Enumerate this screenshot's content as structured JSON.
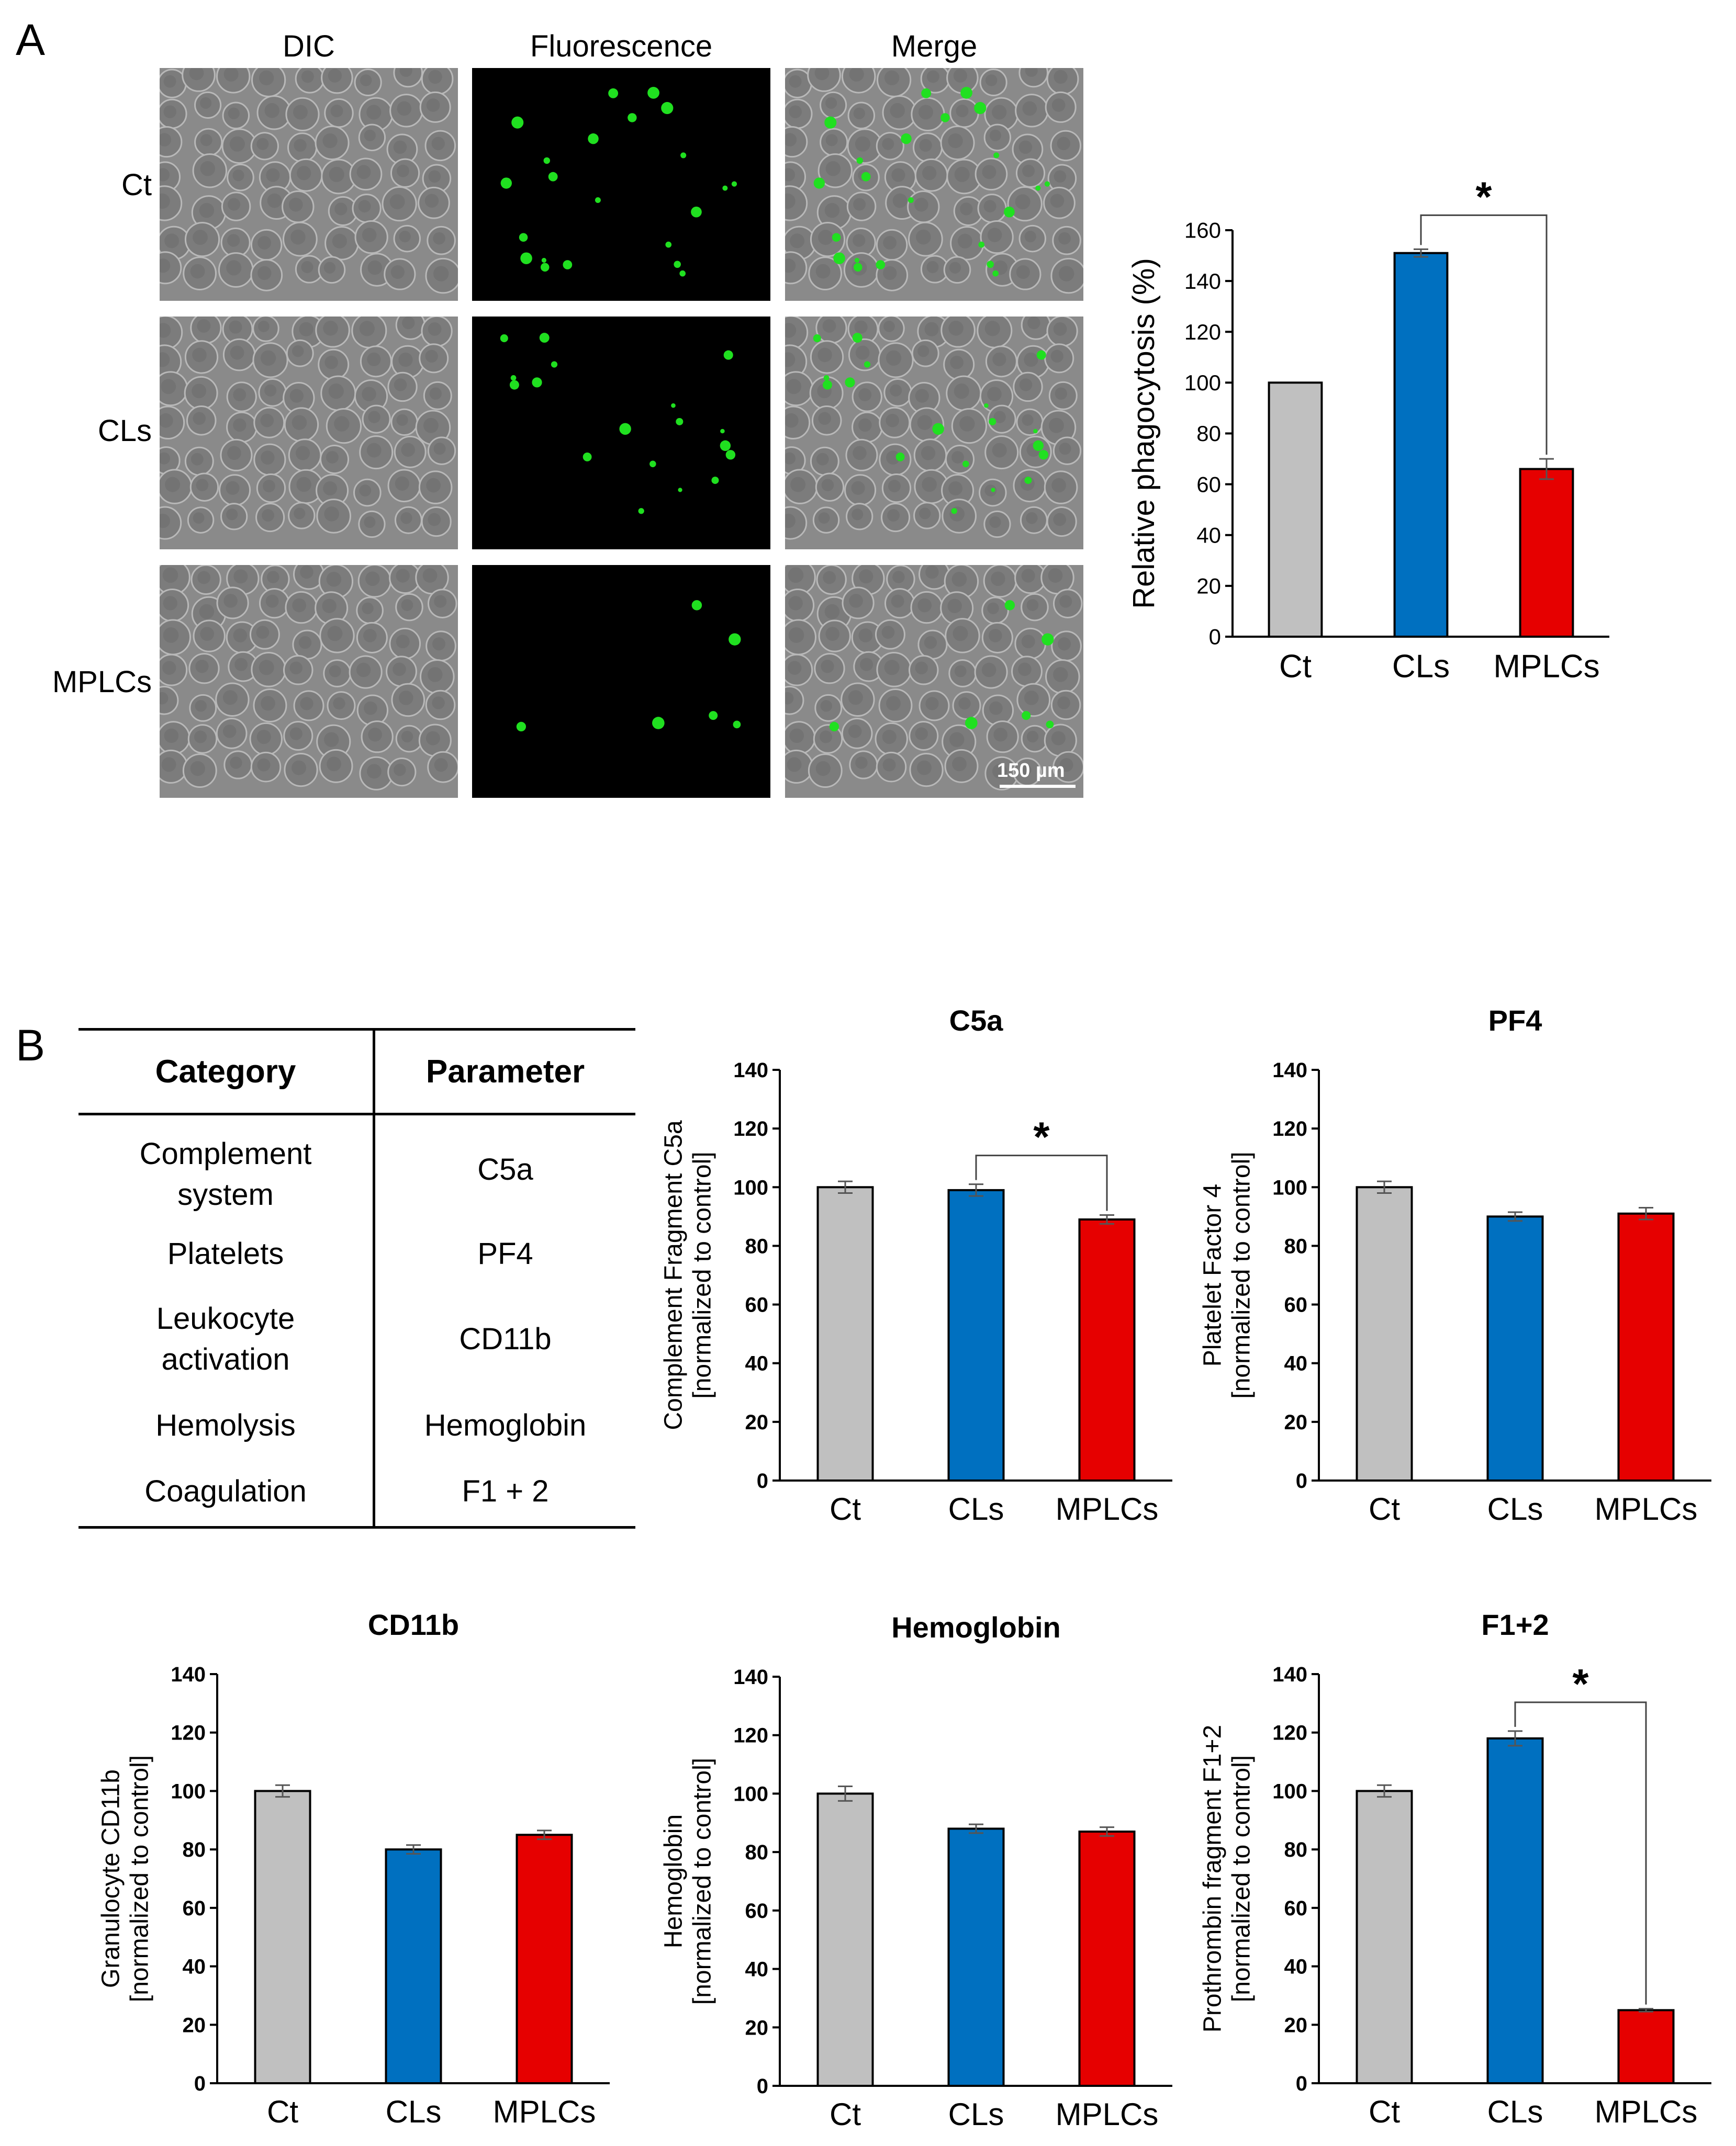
{
  "panel_a": {
    "letter": "A",
    "columns": [
      "DIC",
      "Fluorescence",
      "Merge"
    ],
    "rows": [
      "Ct",
      "CLs",
      "MPLCs"
    ],
    "scale_bar": "150 µm"
  },
  "panel_b": {
    "letter": "B",
    "table": {
      "headers": [
        "Category",
        "Parameter"
      ],
      "rows": [
        {
          "category": [
            "Complement",
            "system"
          ],
          "parameter": "C5a"
        },
        {
          "category": [
            "Platelets"
          ],
          "parameter": "PF4"
        },
        {
          "category": [
            "Leukocyte",
            "activation"
          ],
          "parameter": "CD11b"
        },
        {
          "category": [
            "Hemolysis"
          ],
          "parameter": "Hemoglobin"
        },
        {
          "category": [
            "Coagulation"
          ],
          "parameter": "F1 + 2"
        }
      ]
    }
  },
  "colors": {
    "Ct": "#c0c0c0",
    "CLs": "#0070c0",
    "MPLCs": "#e60000"
  },
  "chart_data": [
    {
      "type": "bar",
      "title": "",
      "categories": [
        "Ct",
        "CLs",
        "MPLCs"
      ],
      "values": [
        100,
        151,
        66
      ],
      "errors": [
        0,
        1.5,
        4
      ],
      "ylabel": [
        "Relative phagocytosis (%)"
      ],
      "ylim": [
        0,
        160
      ],
      "yticks": [
        0,
        20,
        40,
        60,
        80,
        100,
        120,
        140,
        160
      ],
      "significance": {
        "from": 1,
        "to": 2,
        "label": "*"
      }
    },
    {
      "type": "bar",
      "title": "C5a",
      "categories": [
        "Ct",
        "CLs",
        "MPLCs"
      ],
      "values": [
        100,
        99,
        89
      ],
      "errors": [
        2,
        2,
        1.5
      ],
      "ylabel": [
        "Complement Fragment C5a",
        "[normalized to control]"
      ],
      "ylim": [
        0,
        140
      ],
      "yticks": [
        0,
        20,
        40,
        60,
        80,
        100,
        120,
        140
      ],
      "significance": {
        "from": 1,
        "to": 2,
        "label": "*"
      }
    },
    {
      "type": "bar",
      "title": "PF4",
      "categories": [
        "Ct",
        "CLs",
        "MPLCs"
      ],
      "values": [
        100,
        90,
        91
      ],
      "errors": [
        2,
        1.5,
        2
      ],
      "ylabel": [
        "Platelet Factor 4",
        "[normalized to control]"
      ],
      "ylim": [
        0,
        140
      ],
      "yticks": [
        0,
        20,
        40,
        60,
        80,
        100,
        120,
        140
      ],
      "significance": null
    },
    {
      "type": "bar",
      "title": "CD11b",
      "categories": [
        "Ct",
        "CLs",
        "MPLCs"
      ],
      "values": [
        100,
        80,
        85
      ],
      "errors": [
        2,
        1.5,
        1.5
      ],
      "ylabel": [
        "Granulocyte CD11b",
        "[normalized to control]"
      ],
      "ylim": [
        0,
        140
      ],
      "yticks": [
        0,
        20,
        40,
        60,
        80,
        100,
        120,
        140
      ],
      "significance": null
    },
    {
      "type": "bar",
      "title": "Hemoglobin",
      "categories": [
        "Ct",
        "CLs",
        "MPLCs"
      ],
      "values": [
        100,
        88,
        87
      ],
      "errors": [
        2.5,
        1.5,
        1.5
      ],
      "ylabel": [
        "Hemoglobin",
        "[normalized to control]"
      ],
      "ylim": [
        0,
        140
      ],
      "yticks": [
        0,
        20,
        40,
        60,
        80,
        100,
        120,
        140
      ],
      "significance": null
    },
    {
      "type": "bar",
      "title": "F1+2",
      "categories": [
        "Ct",
        "CLs",
        "MPLCs"
      ],
      "values": [
        100,
        118,
        25
      ],
      "errors": [
        2,
        2.5,
        0.5
      ],
      "ylabel": [
        "Prothrombin fragment F1+2",
        "[normalized to control]"
      ],
      "ylim": [
        0,
        140
      ],
      "yticks": [
        0,
        20,
        40,
        60,
        80,
        100,
        120,
        140
      ],
      "significance": {
        "from": 1,
        "to": 2,
        "label": "*"
      }
    }
  ]
}
